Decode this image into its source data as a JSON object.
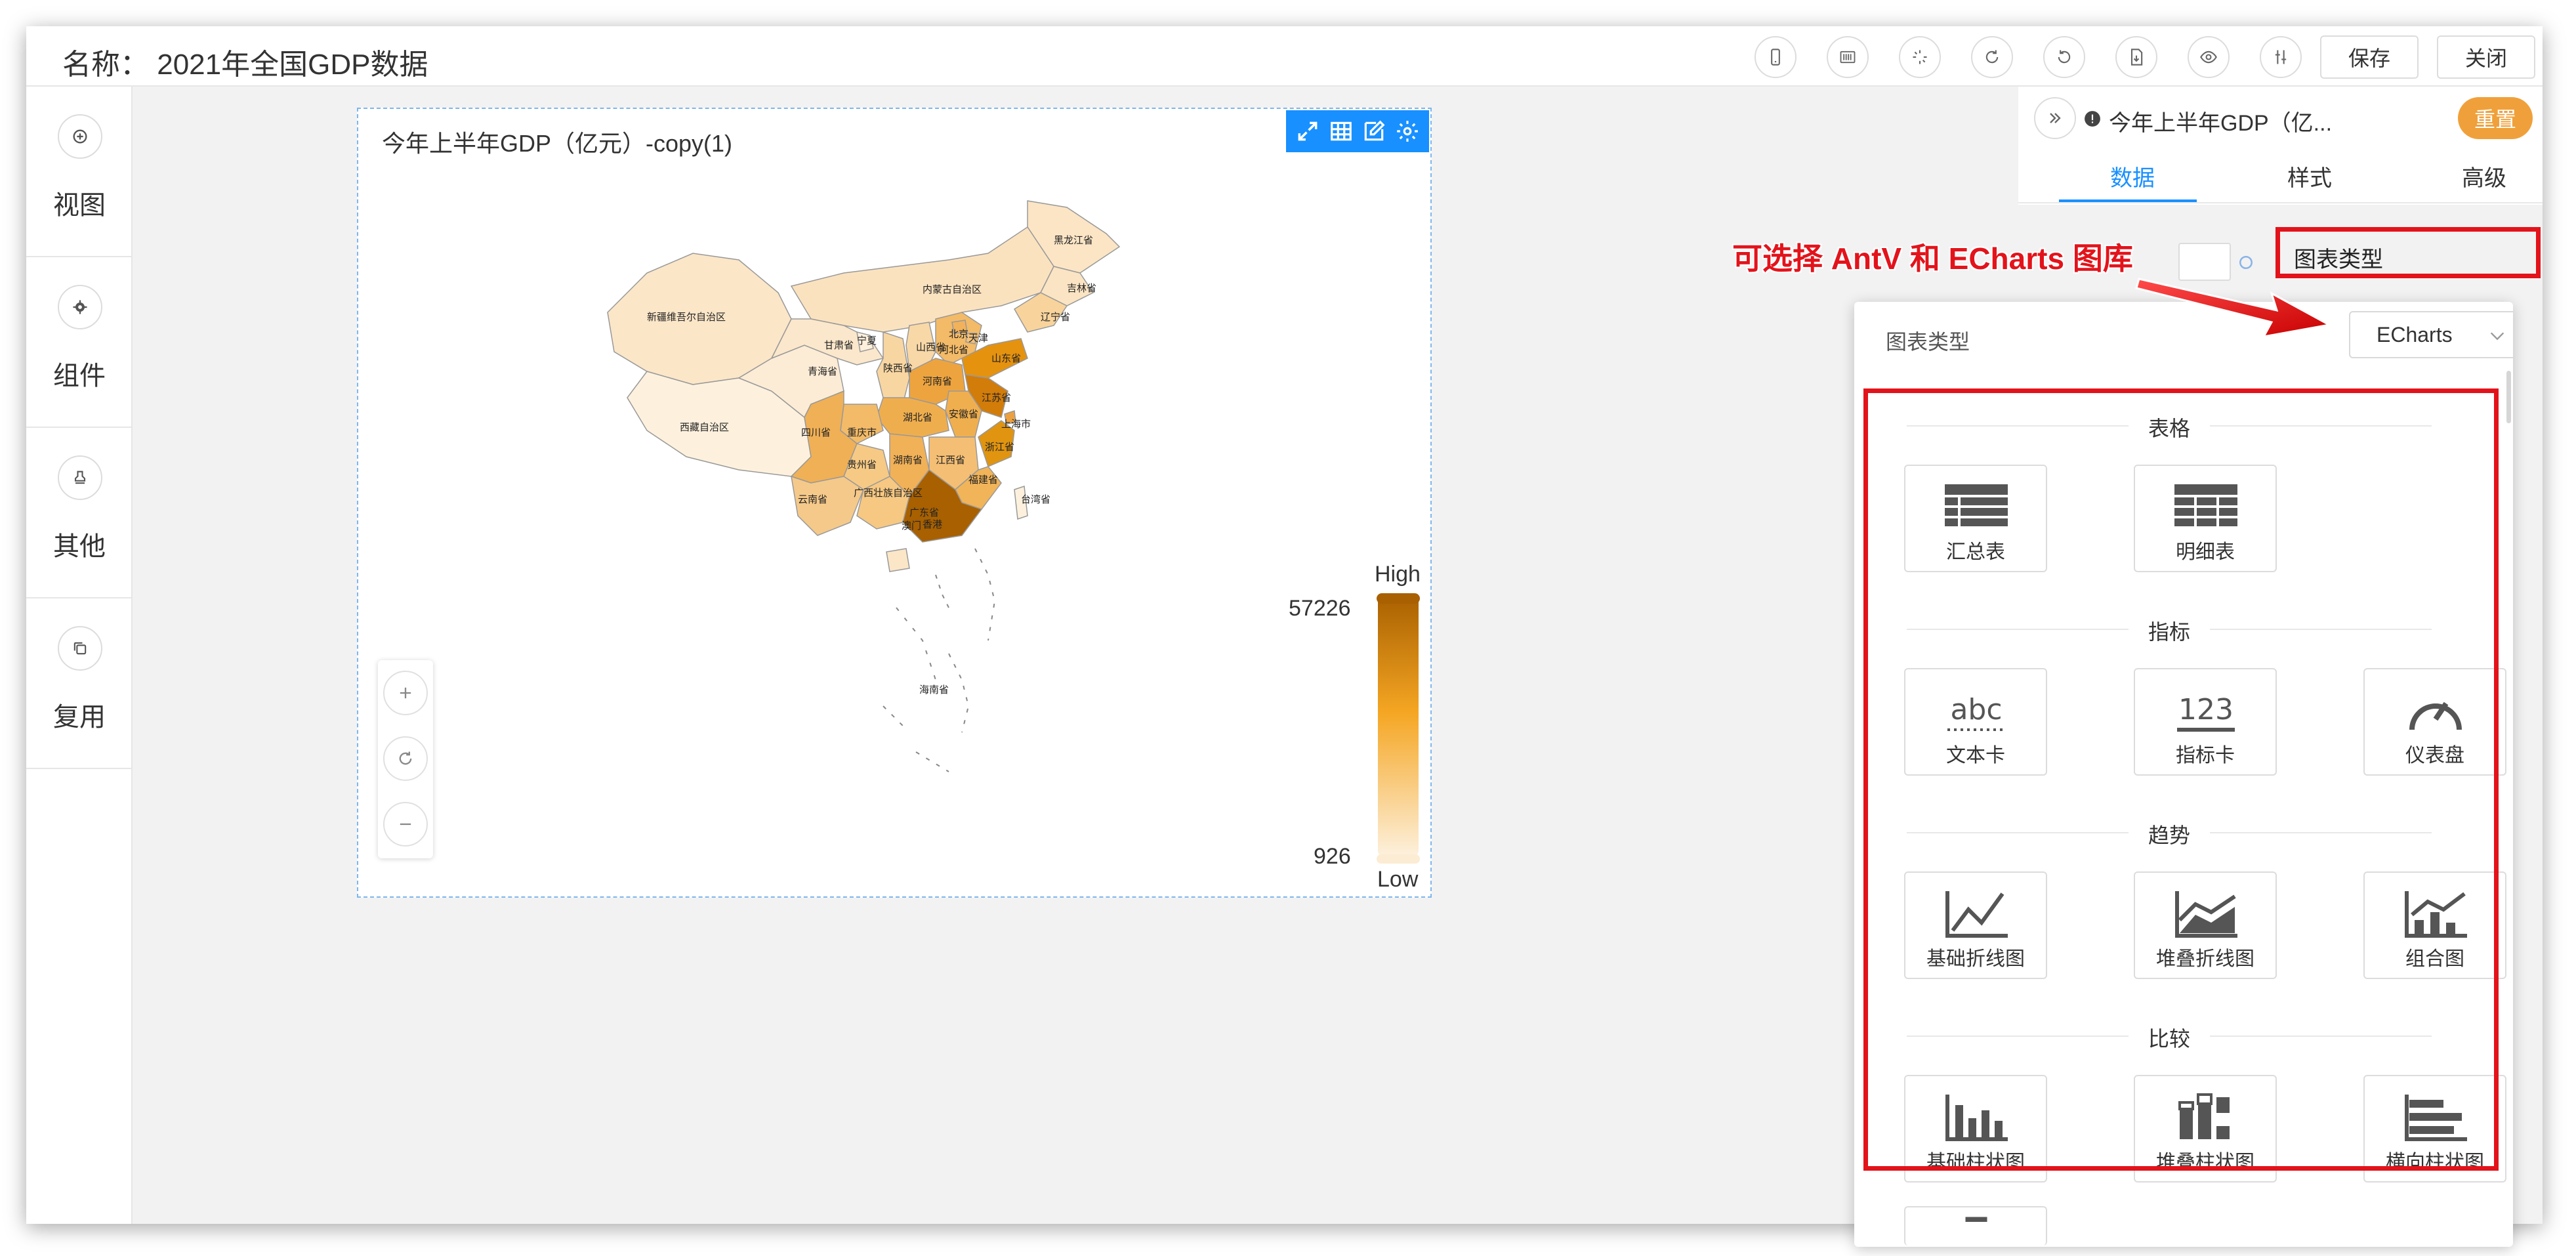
{
  "header": {
    "title": "名称： 2021年全国GDP数据",
    "buttons": {
      "save": "保存",
      "close": "关闭"
    },
    "icons": [
      "mobile-icon",
      "barcode-icon",
      "loading-icon",
      "redo-icon",
      "undo-icon",
      "export-icon",
      "eye-icon",
      "settings-sliders-icon"
    ]
  },
  "sidebar": {
    "items": [
      {
        "label": "视图",
        "icon": "add-circle-icon"
      },
      {
        "label": "组件",
        "icon": "gear-icon"
      },
      {
        "label": "其他",
        "icon": "stamp-icon"
      },
      {
        "label": "复用",
        "icon": "copy-icon"
      }
    ]
  },
  "chart": {
    "title": "今年上半年GDP（亿元）-copy(1)",
    "tools": [
      "expand-icon",
      "table-icon",
      "edit-icon",
      "settings-icon"
    ],
    "legend": {
      "high_label": "High",
      "low_label": "Low",
      "max": "57226",
      "min": "926"
    },
    "colors": {
      "high": "#a86000",
      "mid": "#f5a623",
      "low": "#fdf1de"
    },
    "provinces": {
      "heilongjiang": "黑龙江省",
      "inner_mongolia": "内蒙古自治区",
      "jilin": "吉林省",
      "liaoning": "辽宁省",
      "xinjiang": "新疆维吾尔自治区",
      "gansu": "甘肃省",
      "ningxia": "宁夏",
      "shanxi": "山西省",
      "hebei": "河北省",
      "beijing": "北京",
      "tianjin": "天津",
      "qinghai": "青海省",
      "shaanxi": "陕西省",
      "shandong": "山东省",
      "henan": "河南省",
      "jiangsu": "江苏省",
      "anhui": "安徽省",
      "shanghai": "上海市",
      "xizang": "西藏自治区",
      "sichuan": "四川省",
      "chongqing": "重庆市",
      "hubei": "湖北省",
      "zhejiang": "浙江省",
      "guizhou": "贵州省",
      "hunan": "湖南省",
      "jiangxi": "江西省",
      "fujian": "福建省",
      "yunnan": "云南省",
      "guangxi": "广西壮族自治区",
      "guangdong": "广东省",
      "taiwan": "台湾省",
      "hongkong": "香港",
      "macau": "澳门",
      "hainan": "海南省"
    },
    "zoom": [
      "zoom-in-icon",
      "reset-icon",
      "zoom-out-icon"
    ]
  },
  "right_panel": {
    "chart_name": "今年上半年GDP（亿...",
    "reset": "重置",
    "tabs": [
      "数据",
      "样式",
      "高级"
    ],
    "active_tab": "数据"
  },
  "popup": {
    "label": "图表类型",
    "selected": "ECharts",
    "categories": [
      {
        "name": "表格",
        "items": [
          "汇总表",
          "明细表"
        ]
      },
      {
        "name": "指标",
        "items": [
          "文本卡",
          "指标卡",
          "仪表盘"
        ]
      },
      {
        "name": "趋势",
        "items": [
          "基础折线图",
          "堆叠折线图",
          "组合图"
        ]
      },
      {
        "name": "比较",
        "items": [
          "基础柱状图",
          "堆叠柱状图",
          "横向柱状图"
        ]
      }
    ]
  },
  "annotation": {
    "text": "可选择 AntV 和 ECharts 图库",
    "chart_type_label": "图表类型",
    "color": "#e3131b"
  }
}
